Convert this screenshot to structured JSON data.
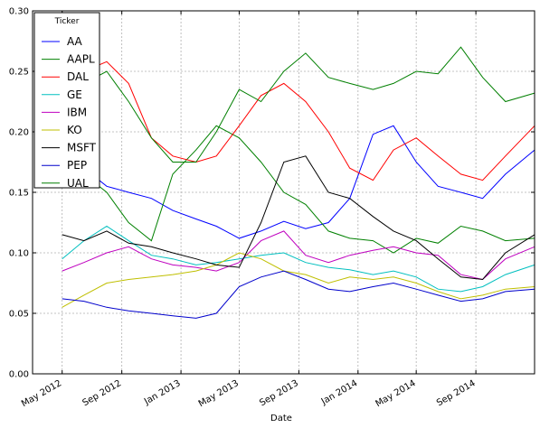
{
  "chart_data": {
    "type": "line",
    "xlabel": "Date",
    "ylabel": "",
    "ylim": [
      0.0,
      0.3
    ],
    "yticks": [
      0.0,
      0.05,
      0.1,
      0.15,
      0.2,
      0.25,
      0.3
    ],
    "ytick_labels": [
      "0.00",
      "0.05",
      "0.10",
      "0.15",
      "0.20",
      "0.25",
      "0.30"
    ],
    "xlim": [
      "2012-03-01",
      "2014-12-31"
    ],
    "xticks": [
      "2012-05-01",
      "2012-09-01",
      "2013-01-01",
      "2013-05-01",
      "2013-09-01",
      "2014-01-01",
      "2014-05-01",
      "2014-09-01"
    ],
    "xtick_labels": [
      "May 2012",
      "Sep 2012",
      "Jan 2013",
      "May 2013",
      "Sep 2013",
      "Jan 2014",
      "May 2014",
      "Sep 2014"
    ],
    "grid": true,
    "legend": {
      "title": "Ticker",
      "placement": "upper-left"
    },
    "series": [
      {
        "name": "AA",
        "color": "#0000ff",
        "x": [
          "2012-05-01",
          "2012-06-15",
          "2012-08-01",
          "2012-09-15",
          "2012-11-01",
          "2012-12-15",
          "2013-02-01",
          "2013-03-15",
          "2013-05-01",
          "2013-06-15",
          "2013-08-01",
          "2013-09-15",
          "2013-11-01",
          "2013-12-15",
          "2014-02-01",
          "2014-03-15",
          "2014-05-01",
          "2014-06-15",
          "2014-08-01",
          "2014-09-15",
          "2014-11-01",
          "2014-12-31"
        ],
        "values": [
          0.165,
          0.17,
          0.155,
          0.15,
          0.145,
          0.135,
          0.128,
          0.122,
          0.112,
          0.118,
          0.126,
          0.12,
          0.125,
          0.145,
          0.198,
          0.205,
          0.175,
          0.155,
          0.15,
          0.145,
          0.165,
          0.185
        ]
      },
      {
        "name": "AAPL",
        "color": "#008000",
        "x": [
          "2012-05-01",
          "2012-06-15",
          "2012-08-01",
          "2012-09-15",
          "2012-11-01",
          "2012-12-15",
          "2013-02-01",
          "2013-03-15",
          "2013-05-01",
          "2013-06-15",
          "2013-08-01",
          "2013-09-15",
          "2013-11-01",
          "2013-12-15",
          "2014-02-01",
          "2014-03-15",
          "2014-05-01",
          "2014-06-15",
          "2014-08-01",
          "2014-09-15",
          "2014-11-01",
          "2014-12-31"
        ],
        "values": [
          0.175,
          0.165,
          0.15,
          0.125,
          0.11,
          0.165,
          0.185,
          0.205,
          0.195,
          0.175,
          0.15,
          0.14,
          0.118,
          0.112,
          0.11,
          0.1,
          0.112,
          0.108,
          0.122,
          0.118,
          0.11,
          0.112
        ]
      },
      {
        "name": "DAL",
        "color": "#ff0000",
        "x": [
          "2012-05-01",
          "2012-06-15",
          "2012-08-01",
          "2012-09-15",
          "2012-11-01",
          "2012-12-15",
          "2013-02-01",
          "2013-03-15",
          "2013-05-01",
          "2013-06-15",
          "2013-08-01",
          "2013-09-15",
          "2013-11-01",
          "2013-12-15",
          "2014-02-01",
          "2014-03-15",
          "2014-05-01",
          "2014-06-15",
          "2014-08-01",
          "2014-09-15",
          "2014-11-01",
          "2014-12-31"
        ],
        "values": [
          0.245,
          0.25,
          0.258,
          0.24,
          0.195,
          0.18,
          0.175,
          0.18,
          0.205,
          0.23,
          0.24,
          0.225,
          0.2,
          0.17,
          0.16,
          0.185,
          0.195,
          0.18,
          0.165,
          0.16,
          0.18,
          0.205
        ]
      },
      {
        "name": "GE",
        "color": "#00bfbf",
        "x": [
          "2012-05-01",
          "2012-06-15",
          "2012-08-01",
          "2012-09-15",
          "2012-11-01",
          "2012-12-15",
          "2013-02-01",
          "2013-03-15",
          "2013-05-01",
          "2013-06-15",
          "2013-08-01",
          "2013-09-15",
          "2013-11-01",
          "2013-12-15",
          "2014-02-01",
          "2014-03-15",
          "2014-05-01",
          "2014-06-15",
          "2014-08-01",
          "2014-09-15",
          "2014-11-01",
          "2014-12-31"
        ],
        "values": [
          0.095,
          0.11,
          0.122,
          0.11,
          0.098,
          0.095,
          0.09,
          0.092,
          0.095,
          0.098,
          0.1,
          0.092,
          0.088,
          0.086,
          0.082,
          0.085,
          0.08,
          0.07,
          0.068,
          0.072,
          0.082,
          0.09
        ]
      },
      {
        "name": "IBM",
        "color": "#bf00bf",
        "x": [
          "2012-05-01",
          "2012-06-15",
          "2012-08-01",
          "2012-09-15",
          "2012-11-01",
          "2012-12-15",
          "2013-02-01",
          "2013-03-15",
          "2013-05-01",
          "2013-06-15",
          "2013-08-01",
          "2013-09-15",
          "2013-11-01",
          "2013-12-15",
          "2014-02-01",
          "2014-03-15",
          "2014-05-01",
          "2014-06-15",
          "2014-08-01",
          "2014-09-15",
          "2014-11-01",
          "2014-12-31"
        ],
        "values": [
          0.085,
          0.092,
          0.1,
          0.105,
          0.095,
          0.09,
          0.088,
          0.085,
          0.092,
          0.11,
          0.118,
          0.098,
          0.092,
          0.098,
          0.102,
          0.105,
          0.1,
          0.098,
          0.082,
          0.078,
          0.095,
          0.105
        ]
      },
      {
        "name": "KO",
        "color": "#bfbf00",
        "x": [
          "2012-05-01",
          "2012-06-15",
          "2012-08-01",
          "2012-09-15",
          "2012-11-01",
          "2012-12-15",
          "2013-02-01",
          "2013-03-15",
          "2013-05-01",
          "2013-06-15",
          "2013-08-01",
          "2013-09-15",
          "2013-11-01",
          "2013-12-15",
          "2014-02-01",
          "2014-03-15",
          "2014-05-01",
          "2014-06-15",
          "2014-08-01",
          "2014-09-15",
          "2014-11-01",
          "2014-12-31"
        ],
        "values": [
          0.055,
          0.065,
          0.075,
          0.078,
          0.08,
          0.082,
          0.085,
          0.09,
          0.1,
          0.095,
          0.085,
          0.082,
          0.075,
          0.08,
          0.078,
          0.08,
          0.075,
          0.068,
          0.062,
          0.065,
          0.07,
          0.072
        ]
      },
      {
        "name": "MSFT",
        "color": "#000000",
        "x": [
          "2012-05-01",
          "2012-06-15",
          "2012-08-01",
          "2012-09-15",
          "2012-11-01",
          "2012-12-15",
          "2013-02-01",
          "2013-03-15",
          "2013-05-01",
          "2013-06-15",
          "2013-08-01",
          "2013-09-15",
          "2013-11-01",
          "2013-12-15",
          "2014-02-01",
          "2014-03-15",
          "2014-05-01",
          "2014-06-15",
          "2014-08-01",
          "2014-09-15",
          "2014-11-01",
          "2014-12-31"
        ],
        "values": [
          0.115,
          0.11,
          0.118,
          0.108,
          0.105,
          0.1,
          0.095,
          0.09,
          0.088,
          0.125,
          0.175,
          0.18,
          0.15,
          0.145,
          0.13,
          0.118,
          0.11,
          0.095,
          0.08,
          0.078,
          0.1,
          0.115
        ]
      },
      {
        "name": "PEP",
        "color": "#0000cc",
        "x": [
          "2012-05-01",
          "2012-06-15",
          "2012-08-01",
          "2012-09-15",
          "2012-11-01",
          "2012-12-15",
          "2013-02-01",
          "2013-03-15",
          "2013-05-01",
          "2013-06-15",
          "2013-08-01",
          "2013-09-15",
          "2013-11-01",
          "2013-12-15",
          "2014-02-01",
          "2014-03-15",
          "2014-05-01",
          "2014-06-15",
          "2014-08-01",
          "2014-09-15",
          "2014-11-01",
          "2014-12-31"
        ],
        "values": [
          0.062,
          0.06,
          0.055,
          0.052,
          0.05,
          0.048,
          0.046,
          0.05,
          0.072,
          0.08,
          0.085,
          0.078,
          0.07,
          0.068,
          0.072,
          0.075,
          0.07,
          0.065,
          0.06,
          0.062,
          0.068,
          0.07
        ]
      },
      {
        "name": "UAL",
        "color": "#007f00",
        "x": [
          "2012-05-01",
          "2012-06-15",
          "2012-08-01",
          "2012-09-15",
          "2012-11-01",
          "2012-12-15",
          "2013-02-01",
          "2013-03-15",
          "2013-05-01",
          "2013-06-15",
          "2013-08-01",
          "2013-09-15",
          "2013-11-01",
          "2013-12-15",
          "2014-02-01",
          "2014-03-15",
          "2014-05-01",
          "2014-06-15",
          "2014-08-01",
          "2014-09-15",
          "2014-11-01",
          "2014-12-31"
        ],
        "values": [
          0.165,
          0.24,
          0.25,
          0.225,
          0.195,
          0.175,
          0.175,
          0.2,
          0.235,
          0.225,
          0.25,
          0.265,
          0.245,
          0.24,
          0.235,
          0.24,
          0.25,
          0.248,
          0.27,
          0.245,
          0.225,
          0.232
        ]
      }
    ]
  }
}
